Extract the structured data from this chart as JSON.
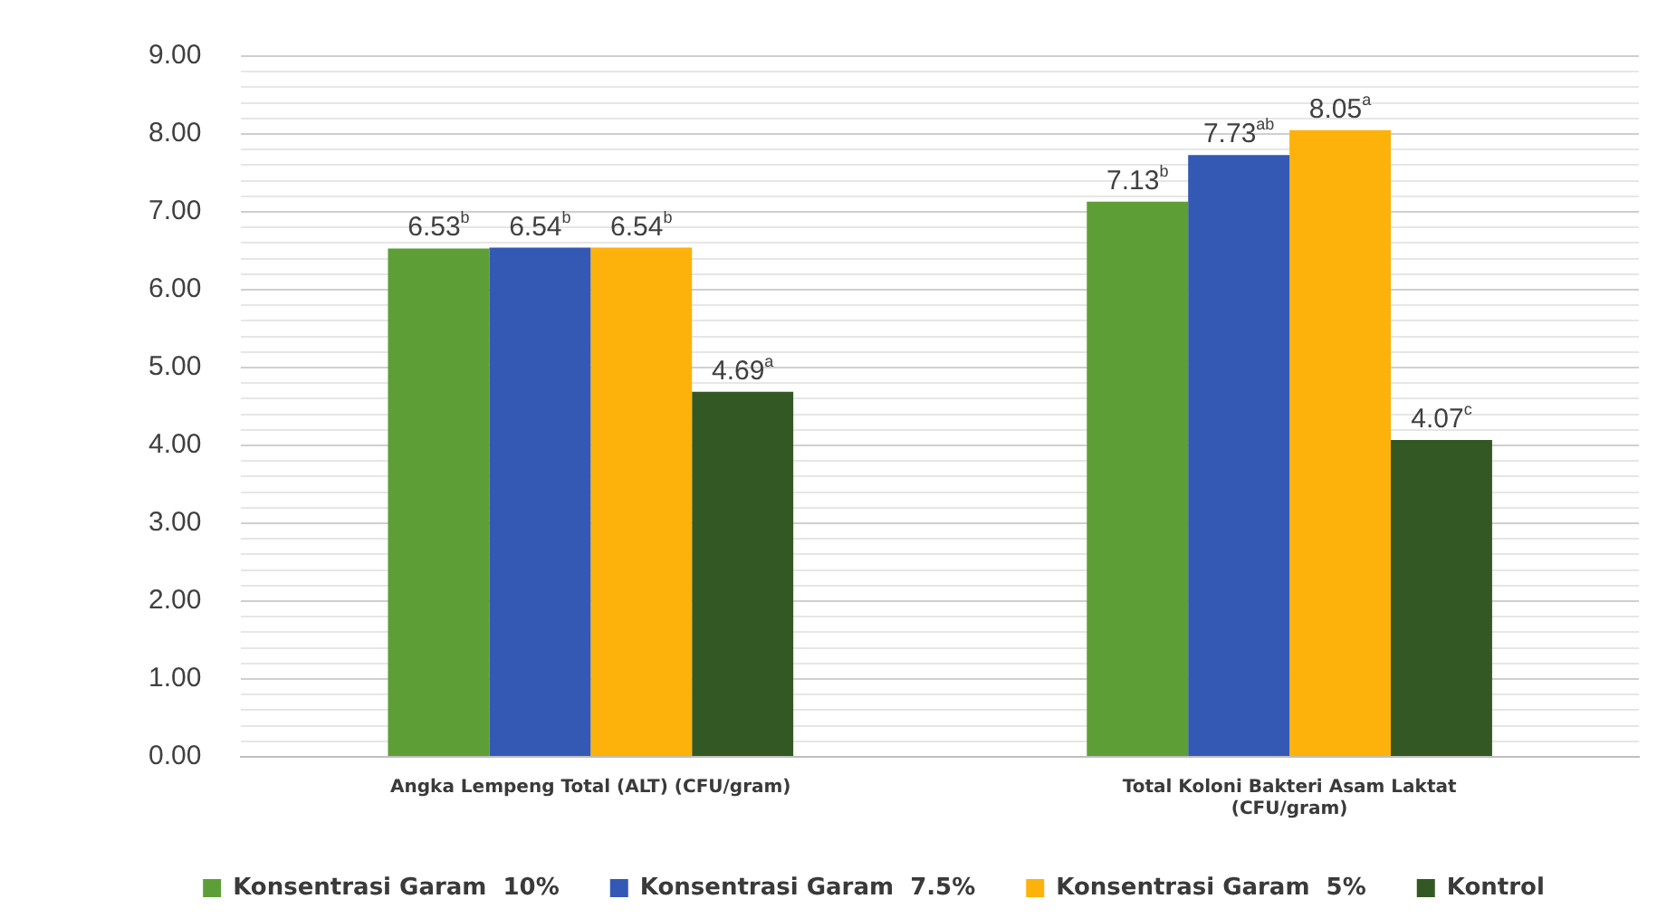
{
  "chart_data": {
    "type": "bar",
    "categories": [
      "Angka Lempeng Total (ALT) (CFU/gram)",
      "Total Koloni Bakteri Asam Laktat (CFU/gram)"
    ],
    "series": [
      {
        "name": "Konsentrasi Garam  10%",
        "color": "#5e9e37",
        "values": [
          6.53,
          7.13
        ],
        "value_labels": [
          "6.53$^{b}$",
          "7.13$^{b}$"
        ]
      },
      {
        "name": "Konsentrasi Garam  7.5%",
        "color": "#3359b5",
        "values": [
          6.54,
          7.73
        ],
        "value_labels": [
          "6.54$^{b}$",
          "7.73$^{ab}$"
        ]
      },
      {
        "name": "Konsentrasi Garam  5%",
        "color": "#fcb20a",
        "values": [
          6.54,
          8.05
        ],
        "value_labels": [
          "6.54$^{b}$",
          "8.05$^{a}$"
        ]
      },
      {
        "name": "Kontrol",
        "color": "#345823",
        "values": [
          4.69,
          4.07
        ],
        "value_labels": [
          "4.69$^{a}$",
          "4.07$^{c}$"
        ]
      }
    ],
    "ylim": [
      0,
      9
    ],
    "yticks": [
      {
        "value": 0,
        "label": "0.00"
      },
      {
        "value": 0.2,
        "label": null
      },
      {
        "value": 0.4,
        "label": null
      },
      {
        "value": 0.6,
        "label": null
      },
      {
        "value": 0.8,
        "label": null
      },
      {
        "value": 1,
        "label": "1.00"
      },
      {
        "value": 1.2,
        "label": null
      },
      {
        "value": 1.4,
        "label": null
      },
      {
        "value": 1.6,
        "label": null
      },
      {
        "value": 1.8,
        "label": null
      },
      {
        "value": 2,
        "label": "2.00"
      },
      {
        "value": 2.2,
        "label": null
      },
      {
        "value": 2.4,
        "label": null
      },
      {
        "value": 2.6,
        "label": null
      },
      {
        "value": 2.8,
        "label": null
      },
      {
        "value": 3,
        "label": "3.00"
      },
      {
        "value": 3.2,
        "label": null
      },
      {
        "value": 3.4,
        "label": null
      },
      {
        "value": 3.6,
        "label": null
      },
      {
        "value": 3.8,
        "label": null
      },
      {
        "value": 4,
        "label": "4.00"
      },
      {
        "value": 4.2,
        "label": null
      },
      {
        "value": 4.4,
        "label": null
      },
      {
        "value": 4.6,
        "label": null
      },
      {
        "value": 4.8,
        "label": null
      },
      {
        "value": 5,
        "label": "5.00"
      },
      {
        "value": 5.2,
        "label": null
      },
      {
        "value": 5.4,
        "label": null
      },
      {
        "value": 5.6,
        "label": null
      },
      {
        "value": 5.8,
        "label": null
      },
      {
        "value": 6,
        "label": "6.00"
      },
      {
        "value": 6.2,
        "label": null
      },
      {
        "value": 6.4,
        "label": null
      },
      {
        "value": 6.6,
        "label": null
      },
      {
        "value": 6.8,
        "label": null
      },
      {
        "value": 7,
        "label": "7.00"
      },
      {
        "value": 7.2,
        "label": null
      },
      {
        "value": 7.4,
        "label": null
      },
      {
        "value": 7.6,
        "label": null
      },
      {
        "value": 7.8,
        "label": null
      },
      {
        "value": 8,
        "label": "8.00"
      },
      {
        "value": 8.2,
        "label": null
      },
      {
        "value": 8.4,
        "label": null
      },
      {
        "value": 8.6,
        "label": null
      },
      {
        "value": 8.8,
        "label": null
      },
      {
        "value": 9,
        "label": "9.00"
      }
    ],
    "grid": true,
    "legend": "bottom"
  }
}
